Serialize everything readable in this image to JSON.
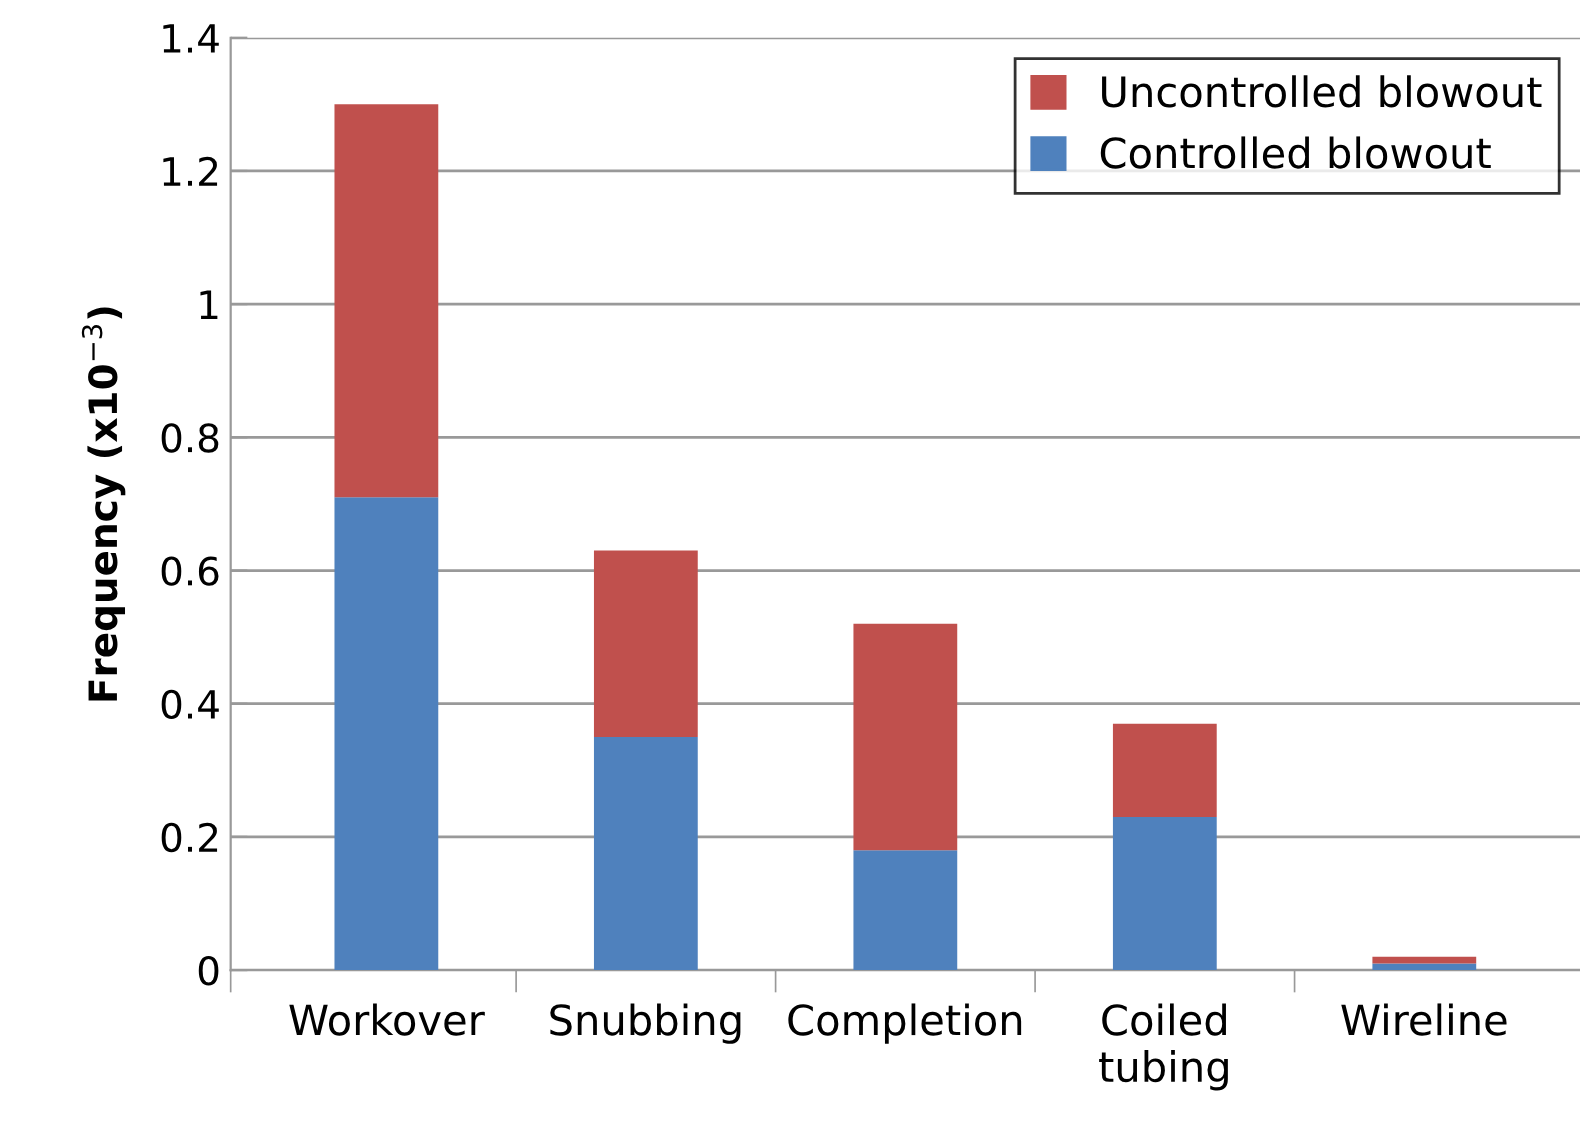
{
  "chart_data": {
    "type": "bar",
    "stacked": true,
    "ylabel": "Frequency (x10$^{−3}$)",
    "categories": [
      "Workover",
      "Snubbing",
      "Completion",
      "Coiled\ntubing",
      "Wireline"
    ],
    "series": [
      {
        "name": "Controlled blowout",
        "color": "#4f81bd",
        "values": [
          0.71,
          0.35,
          0.18,
          0.23,
          0.01
        ]
      },
      {
        "name": "Uncontrolled blowout",
        "color": "#c0504d",
        "values": [
          0.59,
          0.28,
          0.34,
          0.14,
          0.01
        ]
      }
    ],
    "ylim": [
      0,
      1.4
    ],
    "yticks": [
      0,
      0.2,
      0.4,
      0.6,
      0.8,
      1,
      1.2,
      1.4
    ],
    "grid": "y",
    "legend": "top right"
  }
}
